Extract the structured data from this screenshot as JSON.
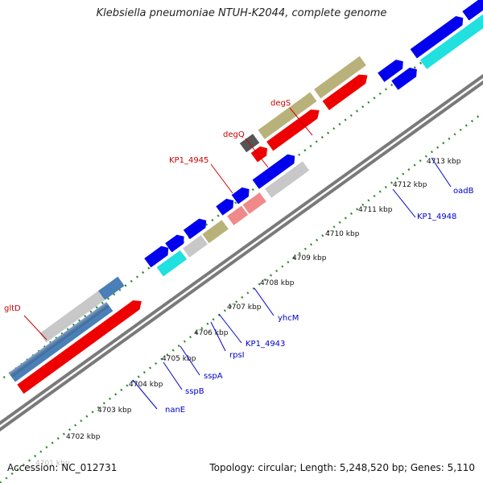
{
  "title": "Klebsiella pneumoniae NTUH-K2044, complete genome",
  "footer": {
    "accession": "Accession: NC_012731",
    "topology": "Topology: circular; Length: 5,248,520 bp; Genes: 5,110"
  },
  "ticks": [
    {
      "label": "4701 kbp"
    },
    {
      "label": "4702 kbp"
    },
    {
      "label": "4703 kbp"
    },
    {
      "label": "4704 kbp"
    },
    {
      "label": "4705 kbp"
    },
    {
      "label": "4706 kbp"
    },
    {
      "label": "4707 kbp"
    },
    {
      "label": "4708 kbp"
    },
    {
      "label": "4709 kbp"
    },
    {
      "label": "4710 kbp"
    },
    {
      "label": "4711 kbp"
    },
    {
      "label": "4712 kbp"
    },
    {
      "label": "4713 kbp"
    }
  ],
  "genes": [
    {
      "name": "gltD",
      "strand": "outer",
      "color": "#cc0000"
    },
    {
      "name": "degS",
      "strand": "outer",
      "color": "#cc0000"
    },
    {
      "name": "degQ",
      "strand": "outer",
      "color": "#cc0000"
    },
    {
      "name": "KP1_4945",
      "strand": "outer",
      "color": "#cc0000"
    },
    {
      "name": "nanE",
      "strand": "inner",
      "color": "#0000cc"
    },
    {
      "name": "sspB",
      "strand": "inner",
      "color": "#0000cc"
    },
    {
      "name": "sspA",
      "strand": "inner",
      "color": "#0000cc"
    },
    {
      "name": "rpsI",
      "strand": "inner",
      "color": "#0000cc"
    },
    {
      "name": "KP1_4943",
      "strand": "inner",
      "color": "#0000cc"
    },
    {
      "name": "yhcM",
      "strand": "inner",
      "color": "#0000cc"
    },
    {
      "name": "KP1_4948",
      "strand": "inner",
      "color": "#0000cc"
    },
    {
      "name": "oadB",
      "strand": "inner",
      "color": "#0000cc"
    }
  ],
  "colors": {
    "red": "#ee0000",
    "blue": "#0000ee",
    "olive": "#b8b27a",
    "gray": "#c8c8c8",
    "steelblue": "#4a7fb8",
    "cyan": "#20e0e0",
    "pink": "#f08a8a",
    "darkgray": "#555555",
    "tick": "#2e8b2e"
  }
}
